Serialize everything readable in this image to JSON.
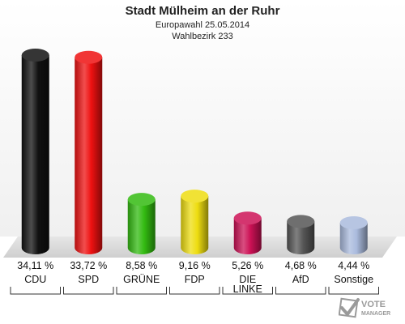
{
  "chart_data": {
    "type": "bar",
    "title": "Stadt Mülheim an der Ruhr",
    "subtitle": "Europawahl 25.05.2014",
    "subtitle2": "Wahlbezirk 233",
    "categories": [
      "CDU",
      "SPD",
      "GRÜNE",
      "FDP",
      "DIE LINKE",
      "AfD",
      "Sonstige"
    ],
    "values": [
      34.11,
      33.72,
      8.58,
      9.16,
      5.26,
      4.68,
      4.44
    ],
    "value_labels": [
      "34,11 %",
      "33,72 %",
      "8,58 %",
      "9,16 %",
      "5,26 %",
      "4,68 %",
      "4,44 %"
    ],
    "colors": [
      "#111111",
      "#ee1111",
      "#33bb11",
      "#eedd11",
      "#cc1155",
      "#555555",
      "#aabbdd"
    ],
    "ylim": [
      0,
      35
    ],
    "grid": false,
    "legend": "none"
  },
  "logo": {
    "line1": "VOTE",
    "line2": "MANAGER"
  }
}
